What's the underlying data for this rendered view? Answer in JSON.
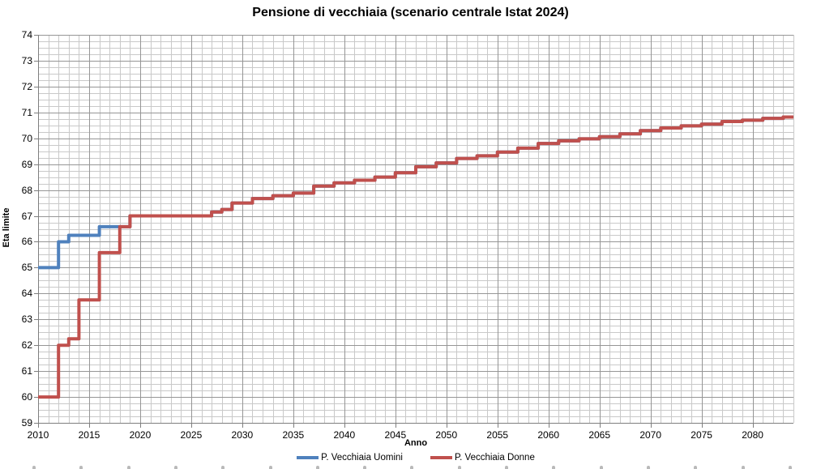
{
  "chart_data": {
    "type": "line",
    "subtype": "step",
    "title": "Pensione di vecchiaia (scenario centrale Istat 2024)",
    "xlabel": "Anno",
    "ylabel": "Eta limite",
    "xlim": [
      2010,
      2084
    ],
    "ylim": [
      59,
      74
    ],
    "x_major_ticks": [
      2010,
      2015,
      2020,
      2025,
      2030,
      2035,
      2040,
      2045,
      2050,
      2055,
      2060,
      2065,
      2070,
      2075,
      2080
    ],
    "x_minor_step": 1,
    "y_major_ticks": [
      59,
      60,
      61,
      62,
      63,
      64,
      65,
      66,
      67,
      68,
      69,
      70,
      71,
      72,
      73,
      74
    ],
    "y_minor_step": 0.25,
    "grid": "on",
    "legend_position": "bottom",
    "colors": {
      "uomini_line": "#4f81bd",
      "donne_line": "#c0504d",
      "grid_minor": "#c9c9c9",
      "grid_major": "#969696",
      "axis": "#7f7f7f",
      "title_text": "#000000"
    },
    "legend": [
      {
        "label": "P. Vecchiaia Uomini",
        "color": "#4f81bd"
      },
      {
        "label": "P. Vecchiaia Donne",
        "color": "#c0504d"
      }
    ],
    "series": [
      {
        "name": "P. Vecchiaia Uomini",
        "color": "#4f81bd",
        "breakpoints": [
          [
            2010,
            65
          ],
          [
            2012,
            66
          ],
          [
            2013,
            66.25
          ],
          [
            2016,
            66.58
          ],
          [
            2019,
            67
          ]
        ],
        "merges_with_donne_from": 2019
      },
      {
        "name": "P. Vecchiaia Donne",
        "color": "#c0504d",
        "breakpoints": [
          [
            2010,
            60
          ],
          [
            2012,
            62
          ],
          [
            2013,
            62.25
          ],
          [
            2014,
            63.75
          ],
          [
            2016,
            65.58
          ],
          [
            2018,
            66.58
          ],
          [
            2019,
            67
          ],
          [
            2027,
            67.15
          ],
          [
            2028,
            67.25
          ],
          [
            2029,
            67.5
          ],
          [
            2031,
            67.67
          ],
          [
            2033,
            67.78
          ],
          [
            2035,
            67.88
          ],
          [
            2037,
            68.15
          ],
          [
            2039,
            68.28
          ],
          [
            2041,
            68.38
          ],
          [
            2043,
            68.5
          ],
          [
            2045,
            68.67
          ],
          [
            2047,
            68.9
          ],
          [
            2049,
            69.05
          ],
          [
            2051,
            69.22
          ],
          [
            2053,
            69.32
          ],
          [
            2055,
            69.47
          ],
          [
            2057,
            69.62
          ],
          [
            2059,
            69.8
          ],
          [
            2061,
            69.9
          ],
          [
            2063,
            69.98
          ],
          [
            2065,
            70.06
          ],
          [
            2067,
            70.17
          ],
          [
            2069,
            70.3
          ],
          [
            2071,
            70.4
          ],
          [
            2073,
            70.48
          ],
          [
            2075,
            70.55
          ],
          [
            2077,
            70.65
          ],
          [
            2079,
            70.7
          ],
          [
            2081,
            70.77
          ],
          [
            2083,
            70.82
          ]
        ]
      }
    ],
    "x_end": 2084
  }
}
